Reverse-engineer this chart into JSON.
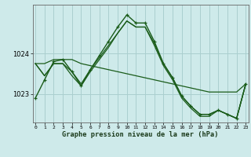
{
  "background_color": "#ceeaea",
  "grid_color": "#aacfcf",
  "line_color": "#1a5c1a",
  "title": "Graphe pression niveau de la mer (hPa)",
  "hours": [
    0,
    1,
    2,
    3,
    4,
    5,
    6,
    7,
    8,
    9,
    10,
    11,
    12,
    13,
    14,
    15,
    16,
    17,
    18,
    19,
    20,
    21,
    22,
    23
  ],
  "yticks": [
    1023,
    1024
  ],
  "ylim": [
    1022.3,
    1025.2
  ],
  "xlim": [
    -0.3,
    23.3
  ],
  "series": [
    {
      "y": [
        1022.9,
        1023.35,
        1023.8,
        1023.85,
        1023.55,
        1023.2,
        1023.6,
        1023.95,
        1024.3,
        1024.65,
        1024.95,
        1024.75,
        1024.75,
        1024.3,
        1023.75,
        1023.4,
        1022.95,
        1022.7,
        1022.5,
        1022.5,
        1022.6,
        1022.5,
        1022.4,
        1023.25
      ],
      "marker": "+",
      "lw": 1.0
    },
    {
      "y": [
        1023.75,
        1023.75,
        1023.85,
        1023.85,
        1023.85,
        1023.75,
        1023.7,
        1023.65,
        1023.6,
        1023.55,
        1023.5,
        1023.45,
        1023.4,
        1023.35,
        1023.3,
        1023.25,
        1023.2,
        1023.15,
        1023.1,
        1023.05,
        1023.05,
        1023.05,
        1023.05,
        1023.25
      ],
      "marker": null,
      "lw": 0.9
    },
    {
      "y": [
        1023.75,
        1023.45,
        1023.75,
        1023.75,
        1023.55,
        1023.25,
        1023.6,
        1023.9,
        1024.2,
        1024.5,
        1024.8,
        1024.65,
        1024.65,
        1024.25,
        1023.75,
        1023.4,
        1022.95,
        1022.7,
        1022.5,
        1022.5,
        1022.6,
        1022.5,
        1022.4,
        1023.25
      ],
      "marker": null,
      "lw": 0.9
    },
    {
      "y": [
        1023.75,
        1023.45,
        1023.75,
        1023.75,
        1023.45,
        1023.2,
        1023.55,
        1023.85,
        1024.15,
        1024.5,
        1024.8,
        1024.65,
        1024.65,
        1024.2,
        1023.7,
        1023.35,
        1022.9,
        1022.65,
        1022.45,
        1022.45,
        1022.6,
        1022.5,
        1022.4,
        1023.25
      ],
      "marker": null,
      "lw": 0.9
    }
  ]
}
